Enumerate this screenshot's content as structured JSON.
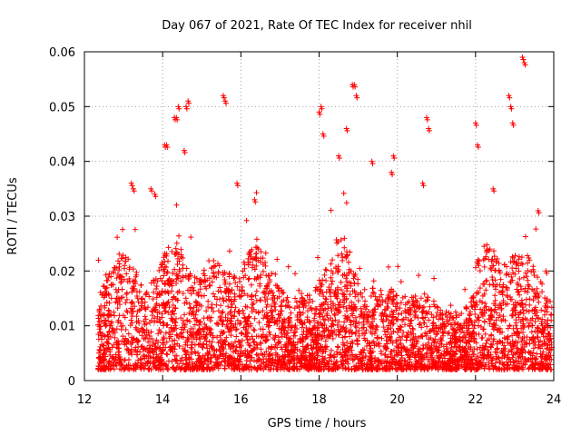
{
  "chart_data": {
    "type": "scatter",
    "title": "Day 067 of 2021, Rate Of TEC Index for receiver nhil",
    "xlabel": "GPS time / hours",
    "ylabel": "ROTI / TECUs",
    "xlim": [
      12,
      24
    ],
    "ylim": [
      0,
      0.06
    ],
    "xticks": [
      12,
      14,
      16,
      18,
      20,
      22,
      24
    ],
    "xtick_labels": [
      "12",
      "14",
      "16",
      "18",
      "20",
      "22",
      "24"
    ],
    "yticks": [
      0,
      0.01,
      0.02,
      0.03,
      0.04,
      0.05,
      0.06
    ],
    "ytick_labels": [
      "0",
      "0.01",
      "0.02",
      "0.03",
      "0.04",
      "0.05",
      "0.06"
    ],
    "grid": true,
    "marker": "+",
    "color": "#ff0000",
    "series": [
      {
        "name": "ROTI",
        "x_start": 12.35,
        "x_end": 23.95,
        "baseline_approx": 0.008,
        "spread_approx": 0.02,
        "points": [
          [
            13.2,
            0.036
          ],
          [
            13.25,
            0.035
          ],
          [
            13.7,
            0.035
          ],
          [
            13.8,
            0.034
          ],
          [
            14.05,
            0.043
          ],
          [
            14.1,
            0.043
          ],
          [
            14.3,
            0.048
          ],
          [
            14.35,
            0.048
          ],
          [
            14.4,
            0.05
          ],
          [
            14.55,
            0.042
          ],
          [
            14.6,
            0.05
          ],
          [
            14.65,
            0.051
          ],
          [
            15.55,
            0.052
          ],
          [
            15.6,
            0.051
          ],
          [
            15.9,
            0.036
          ],
          [
            16.35,
            0.033
          ],
          [
            18.0,
            0.049
          ],
          [
            18.05,
            0.05
          ],
          [
            18.1,
            0.045
          ],
          [
            18.5,
            0.041
          ],
          [
            18.7,
            0.046
          ],
          [
            18.85,
            0.054
          ],
          [
            18.9,
            0.054
          ],
          [
            18.95,
            0.052
          ],
          [
            19.35,
            0.04
          ],
          [
            19.85,
            0.038
          ],
          [
            19.9,
            0.041
          ],
          [
            20.65,
            0.036
          ],
          [
            20.75,
            0.048
          ],
          [
            20.8,
            0.046
          ],
          [
            22.0,
            0.047
          ],
          [
            22.05,
            0.043
          ],
          [
            22.45,
            0.035
          ],
          [
            22.85,
            0.052
          ],
          [
            22.9,
            0.05
          ],
          [
            22.95,
            0.047
          ],
          [
            23.2,
            0.059
          ],
          [
            23.25,
            0.058
          ],
          [
            23.6,
            0.031
          ],
          [
            23.8,
            0.02
          ]
        ]
      }
    ]
  }
}
